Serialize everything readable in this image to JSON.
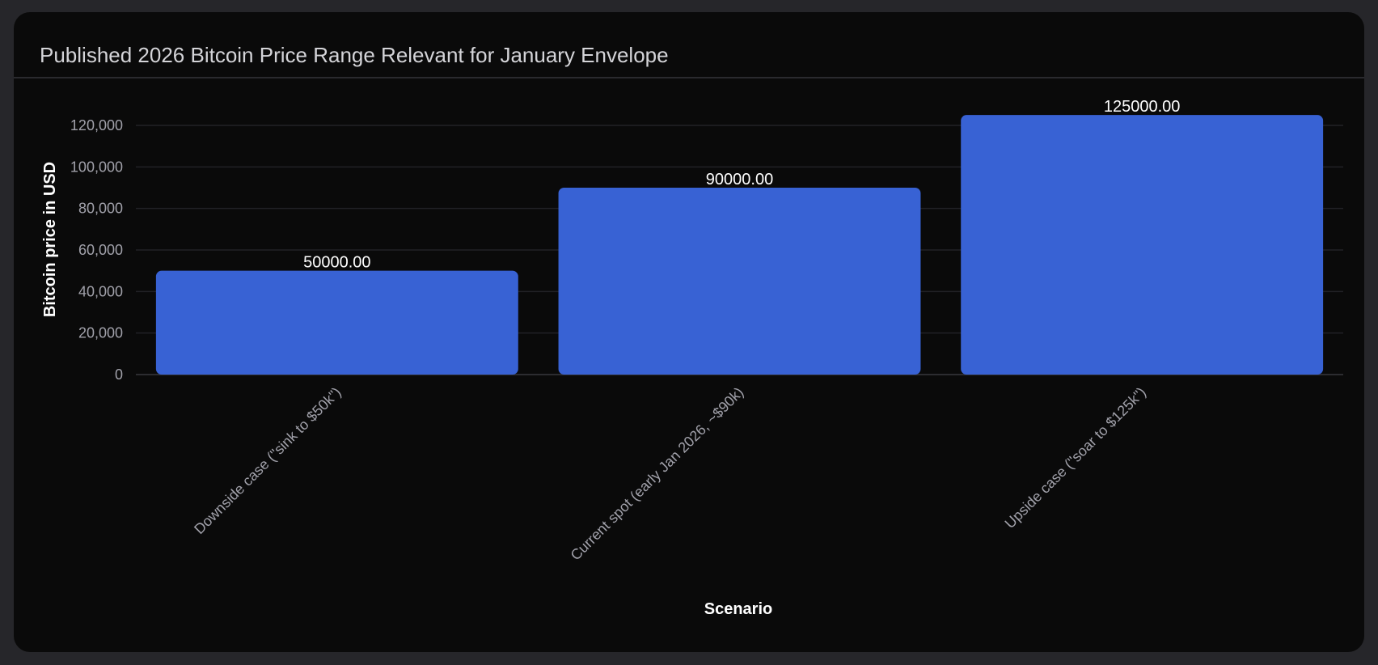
{
  "chart_data": {
    "type": "bar",
    "title": "Published 2026 Bitcoin Price Range Relevant for January Envelope",
    "xlabel": "Scenario",
    "ylabel": "Bitcoin price in USD",
    "categories": [
      "Downside case (\"sink to $50k\")",
      "Current spot (early Jan 2026, ~$90k)",
      "Upside case (\"soar to $125k\")"
    ],
    "values": [
      50000,
      90000,
      125000
    ],
    "data_labels": [
      "50000.00",
      "90000.00",
      "125000.00"
    ],
    "yticks": [
      0,
      20000,
      40000,
      60000,
      80000,
      100000,
      120000
    ],
    "ytick_labels": [
      "0",
      "20,000",
      "40,000",
      "60,000",
      "80,000",
      "100,000",
      "120,000"
    ],
    "ylim": [
      0,
      125000
    ],
    "grid": true,
    "bar_color": "#3862d4"
  }
}
